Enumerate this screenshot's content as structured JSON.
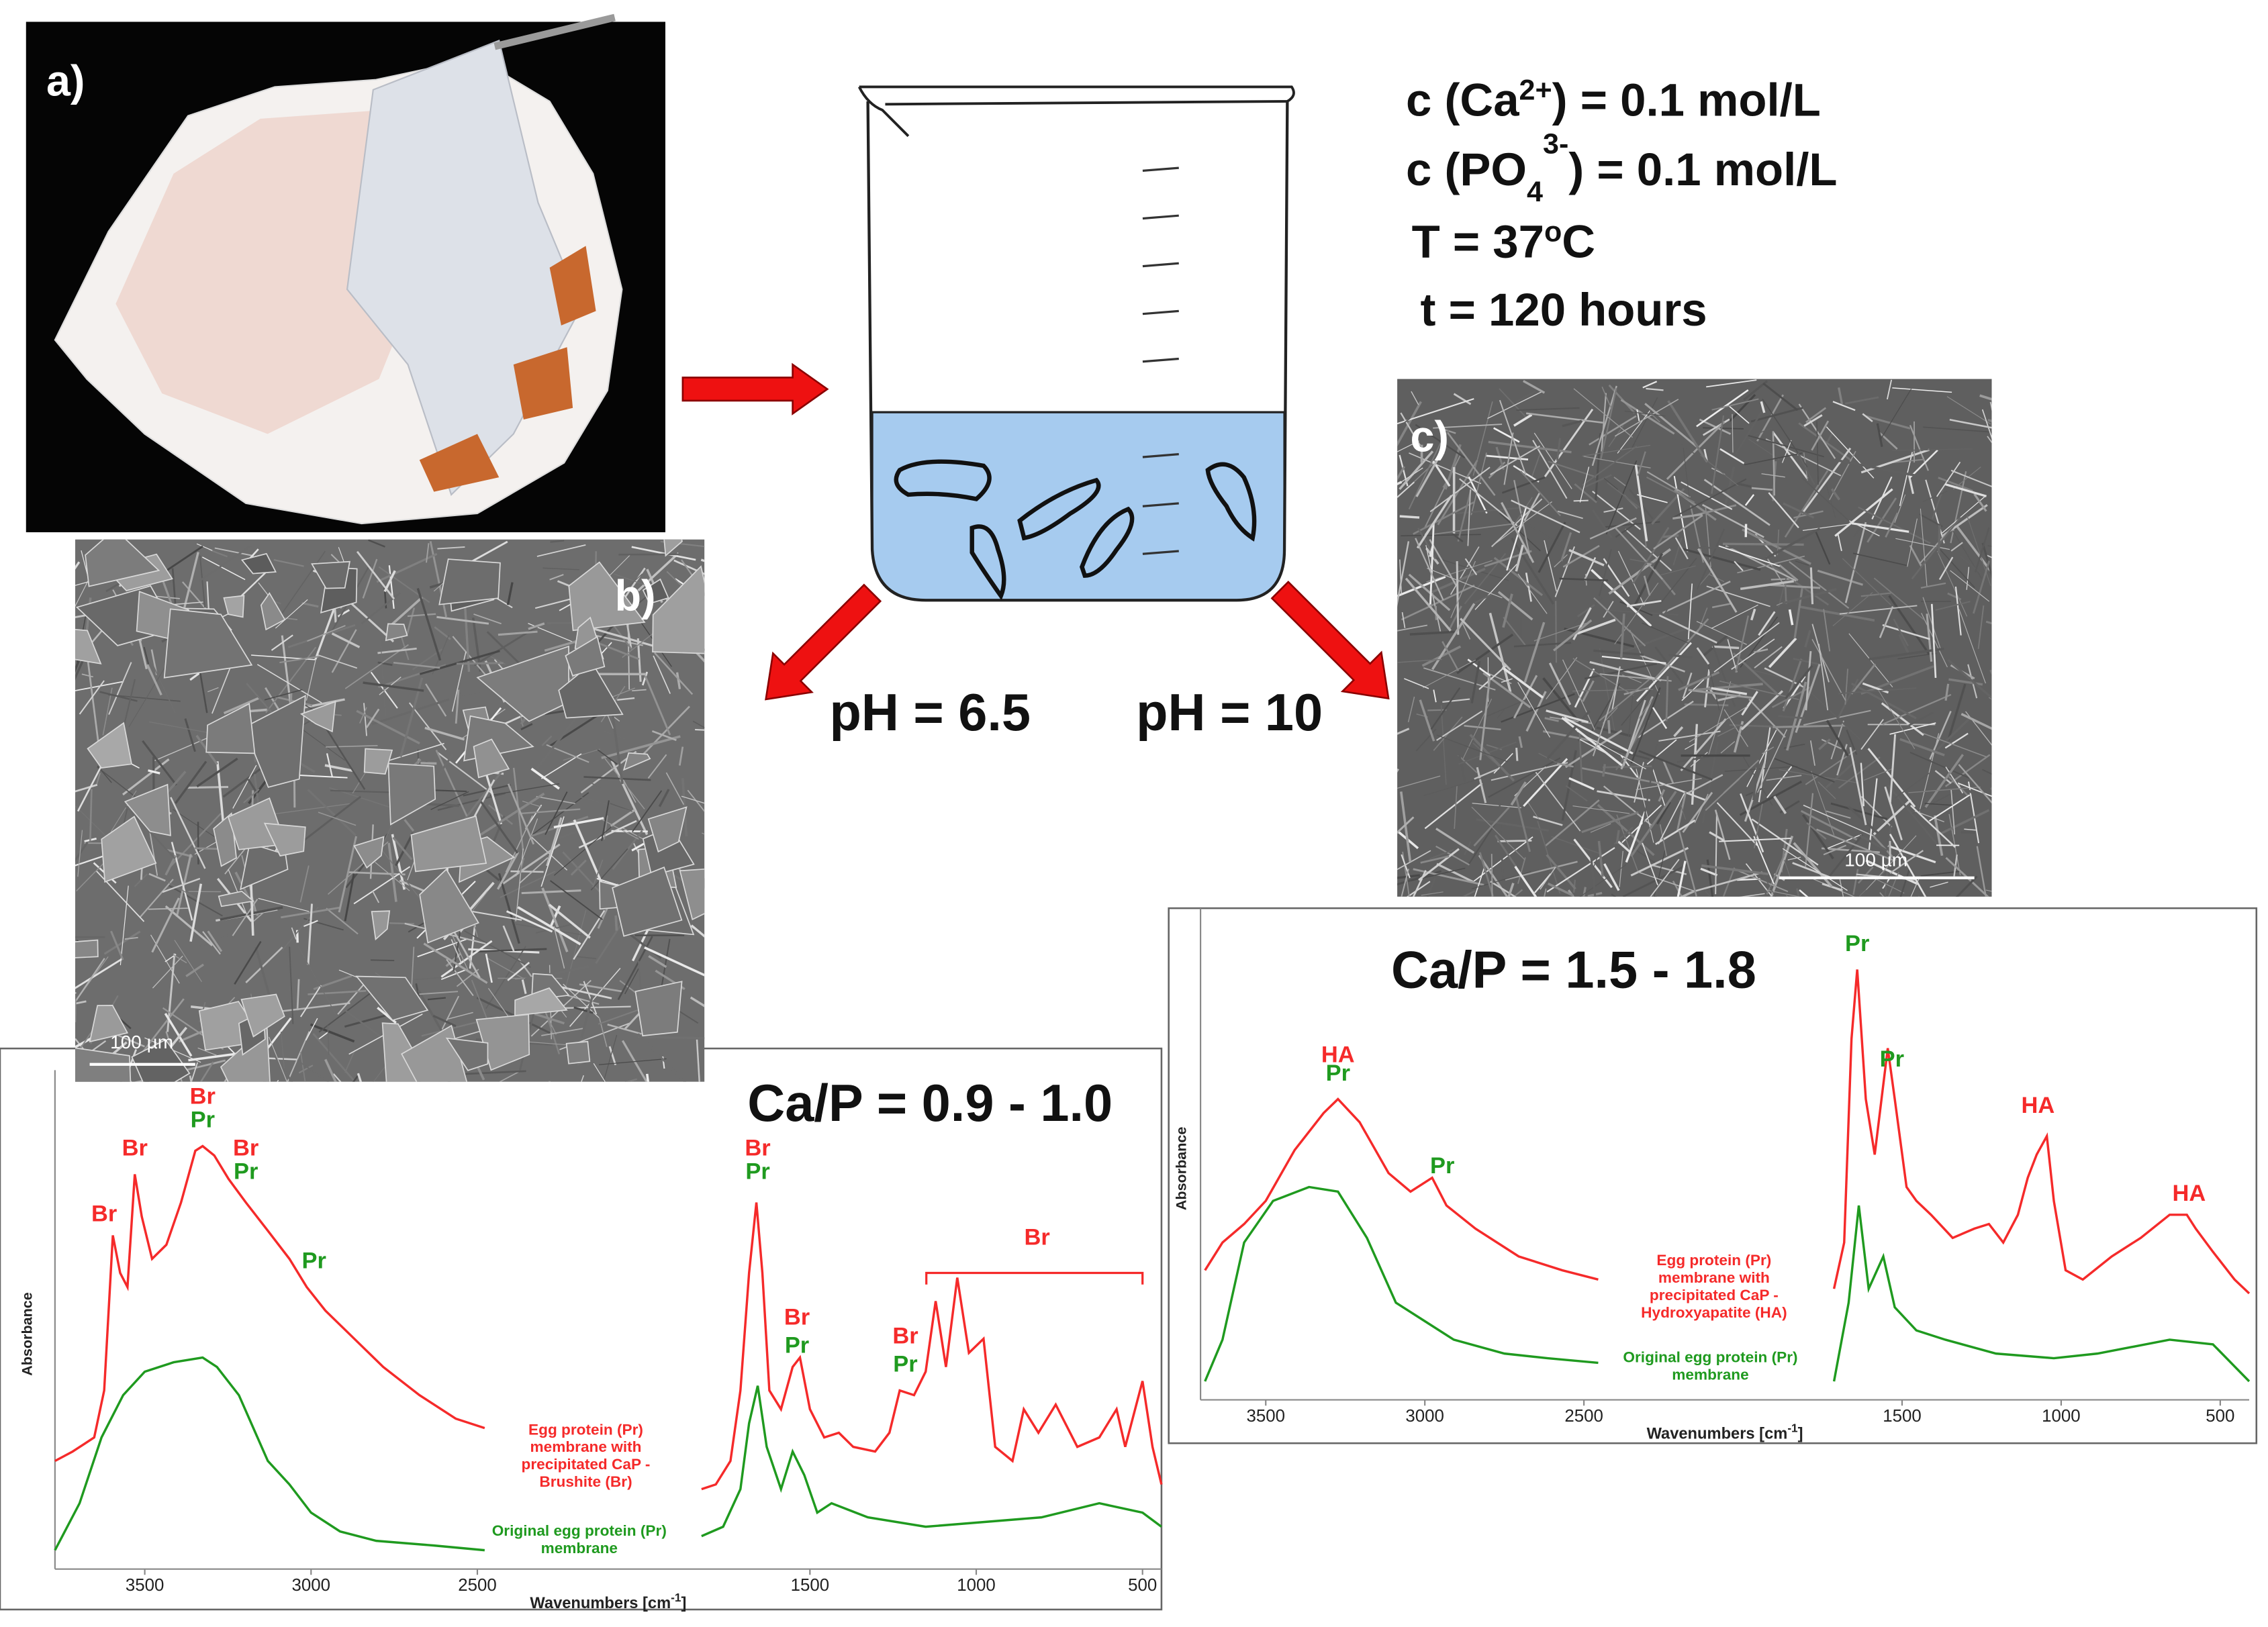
{
  "panels": {
    "a": "a)",
    "b": "b)",
    "c": "c)"
  },
  "scale_bars": [
    "100 µm",
    "100 µm"
  ],
  "conditions": [
    {
      "text": "c (Ca",
      "sup": "2+",
      "end": ") = 0.1 mol/L"
    },
    {
      "text": "c (PO",
      "sub": "4",
      "sup": "3-",
      "end": ") = 0.1 mol/L"
    },
    {
      "text": "T = 37",
      "sup": "o",
      "end": "C"
    },
    {
      "text": "t = 120 hours"
    }
  ],
  "ph": [
    "pH = 6.5",
    "pH = 10"
  ],
  "chart_data": [
    {
      "type": "line",
      "title": "Ca/P = 0.9 - 1.0",
      "y_label": "Absorbance",
      "x_label": {
        "text": "Wavenumbers [cm",
        "sup": "-1",
        "end": "]"
      },
      "xlim": [
        3770,
        443
      ],
      "ylim": [
        0,
        1
      ],
      "xticks": [
        3500,
        3000,
        2500,
        1500,
        1000,
        500
      ],
      "series": [
        {
          "name": "Egg protein (Pr)\nmembrane with\nprecipitated CaP -\nBrushite (Br)",
          "color": "#f52a2a",
          "x": [
            3770,
            3717,
            3652,
            3622,
            3596,
            3574,
            3552,
            3530,
            3509,
            3478,
            3435,
            3391,
            3348,
            3326,
            3291,
            3248,
            3196,
            3130,
            3065,
            3013,
            2957,
            2870,
            2783,
            2674,
            2565,
            2478,
            2100,
            1826,
            1783,
            1739,
            1709,
            1683,
            1661,
            1643,
            1622,
            1587,
            1552,
            1530,
            1500,
            1457,
            1413,
            1370,
            1304,
            1261,
            1230,
            1187,
            1152,
            1122,
            1091,
            1057,
            1022,
            978,
            943,
            891,
            857,
            813,
            761,
            696,
            630,
            578,
            552,
            500,
            470,
            443
          ],
          "values": [
            0.23,
            0.25,
            0.28,
            0.38,
            0.71,
            0.63,
            0.6,
            0.84,
            0.75,
            0.66,
            0.69,
            0.78,
            0.89,
            0.9,
            0.88,
            0.83,
            0.78,
            0.72,
            0.66,
            0.6,
            0.55,
            0.49,
            0.43,
            0.37,
            0.32,
            0.3,
            null,
            0.17,
            0.18,
            0.23,
            0.38,
            0.63,
            0.78,
            0.63,
            0.38,
            0.34,
            0.43,
            0.45,
            0.34,
            0.28,
            0.29,
            0.26,
            0.25,
            0.29,
            0.38,
            0.37,
            0.42,
            0.57,
            0.43,
            0.62,
            0.46,
            0.49,
            0.26,
            0.23,
            0.34,
            0.29,
            0.35,
            0.26,
            0.28,
            0.34,
            0.26,
            0.4,
            0.26,
            0.18
          ]
        },
        {
          "name": "Original egg protein (Pr)\nmembrane",
          "color": "#1f9a1f",
          "x": [
            3770,
            3696,
            3630,
            3565,
            3500,
            3413,
            3326,
            3283,
            3217,
            3130,
            3065,
            3000,
            2913,
            2804,
            2630,
            2478,
            2100,
            1826,
            1761,
            1709,
            1683,
            1657,
            1630,
            1587,
            1552,
            1517,
            1478,
            1435,
            1326,
            1152,
            978,
            804,
            630,
            500,
            443
          ],
          "values": [
            0.04,
            0.14,
            0.28,
            0.37,
            0.42,
            0.44,
            0.45,
            0.43,
            0.37,
            0.23,
            0.18,
            0.12,
            0.08,
            0.06,
            0.05,
            0.04,
            null,
            0.07,
            0.09,
            0.17,
            0.31,
            0.39,
            0.26,
            0.17,
            0.25,
            0.2,
            0.12,
            0.14,
            0.11,
            0.09,
            0.1,
            0.11,
            0.14,
            0.12,
            0.09
          ]
        }
      ],
      "annotations": [
        {
          "text": "Br",
          "color": "#f52a2a",
          "x": 3622,
          "y": 0.74
        },
        {
          "text": "Br",
          "color": "#f52a2a",
          "x": 3530,
          "y": 0.88
        },
        {
          "text": "Br",
          "color": "#f52a2a",
          "x": 3326,
          "y": 0.99
        },
        {
          "text": "Pr",
          "color": "#1f9a1f",
          "x": 3326,
          "y": 0.94
        },
        {
          "text": "Br",
          "color": "#f52a2a",
          "x": 3196,
          "y": 0.88
        },
        {
          "text": "Pr",
          "color": "#1f9a1f",
          "x": 3196,
          "y": 0.83
        },
        {
          "text": "Pr",
          "color": "#1f9a1f",
          "x": 2991,
          "y": 0.64
        },
        {
          "text": "Br",
          "color": "#f52a2a",
          "x": 1657,
          "y": 0.88
        },
        {
          "text": "Pr",
          "color": "#1f9a1f",
          "x": 1657,
          "y": 0.83
        },
        {
          "text": "Br",
          "color": "#f52a2a",
          "x": 1539,
          "y": 0.52
        },
        {
          "text": "Pr",
          "color": "#1f9a1f",
          "x": 1539,
          "y": 0.46
        },
        {
          "text": "Br",
          "color": "#f52a2a",
          "x": 1213,
          "y": 0.48
        },
        {
          "text": "Pr",
          "color": "#1f9a1f",
          "x": 1213,
          "y": 0.42
        },
        {
          "text": "Br",
          "color": "#f52a2a",
          "x": 817,
          "y": 0.69,
          "bracket": {
            "from": 1150,
            "to": 500,
            "y": 0.63
          }
        }
      ]
    },
    {
      "type": "line",
      "title": "Ca/P = 1.5 - 1.8",
      "y_label": "Absorbance",
      "x_label": {
        "text": "Wavenumbers [cm",
        "sup": "-1",
        "end": "]"
      },
      "xlim": [
        3705,
        409
      ],
      "ylim": [
        0,
        1
      ],
      "xticks": [
        3500,
        3000,
        2500,
        1500,
        1000,
        500
      ],
      "series": [
        {
          "name": "Egg protein (Pr)\nmembrane with\nprecipitated CaP -\nHydroxyapatite (HA)",
          "color": "#f52a2a",
          "x": [
            3691,
            3636,
            3568,
            3500,
            3409,
            3318,
            3273,
            3205,
            3114,
            3045,
            2977,
            2932,
            2841,
            2705,
            2568,
            2455,
            2100,
            1714,
            1682,
            1659,
            1641,
            1614,
            1586,
            1545,
            1523,
            1486,
            1455,
            1409,
            1341,
            1273,
            1227,
            1182,
            1136,
            1105,
            1077,
            1045,
            1023,
            986,
            932,
            841,
            750,
            659,
            605,
            577,
            523,
            455,
            409
          ],
          "values": [
            0.28,
            0.34,
            0.38,
            0.43,
            0.54,
            0.62,
            0.65,
            0.6,
            0.49,
            0.45,
            0.48,
            0.42,
            0.37,
            0.31,
            0.28,
            0.26,
            null,
            0.24,
            0.34,
            0.78,
            0.93,
            0.65,
            0.53,
            0.76,
            0.65,
            0.46,
            0.43,
            0.4,
            0.35,
            0.37,
            0.38,
            0.34,
            0.4,
            0.48,
            0.53,
            0.57,
            0.43,
            0.28,
            0.26,
            0.31,
            0.35,
            0.4,
            0.4,
            0.37,
            0.32,
            0.26,
            0.23
          ]
        },
        {
          "name": "Original egg protein (Pr)\nmembrane",
          "color": "#1f9a1f",
          "x": [
            3691,
            3636,
            3568,
            3477,
            3364,
            3273,
            3182,
            3091,
            3000,
            2909,
            2750,
            2614,
            2455,
            2100,
            1714,
            1668,
            1636,
            1605,
            1559,
            1523,
            1455,
            1364,
            1205,
            1023,
            886,
            659,
            523,
            409
          ],
          "values": [
            0.04,
            0.13,
            0.34,
            0.43,
            0.46,
            0.45,
            0.35,
            0.21,
            0.17,
            0.13,
            0.1,
            0.09,
            0.08,
            null,
            0.04,
            0.21,
            0.42,
            0.24,
            0.31,
            0.2,
            0.15,
            0.13,
            0.1,
            0.09,
            0.1,
            0.13,
            0.12,
            0.04
          ]
        }
      ],
      "annotations": [
        {
          "text": "HA",
          "color": "#f52a2a",
          "x": 3273,
          "y": 0.73
        },
        {
          "text": "Pr",
          "color": "#1f9a1f",
          "x": 3273,
          "y": 0.69
        },
        {
          "text": "Pr",
          "color": "#1f9a1f",
          "x": 2945,
          "y": 0.49
        },
        {
          "text": "Pr",
          "color": "#1f9a1f",
          "x": 1641,
          "y": 0.97
        },
        {
          "text": "Pr",
          "color": "#1f9a1f",
          "x": 1532,
          "y": 0.72
        },
        {
          "text": "HA",
          "color": "#f52a2a",
          "x": 1073,
          "y": 0.62
        },
        {
          "text": "HA",
          "color": "#f52a2a",
          "x": 598,
          "y": 0.43
        }
      ]
    }
  ]
}
